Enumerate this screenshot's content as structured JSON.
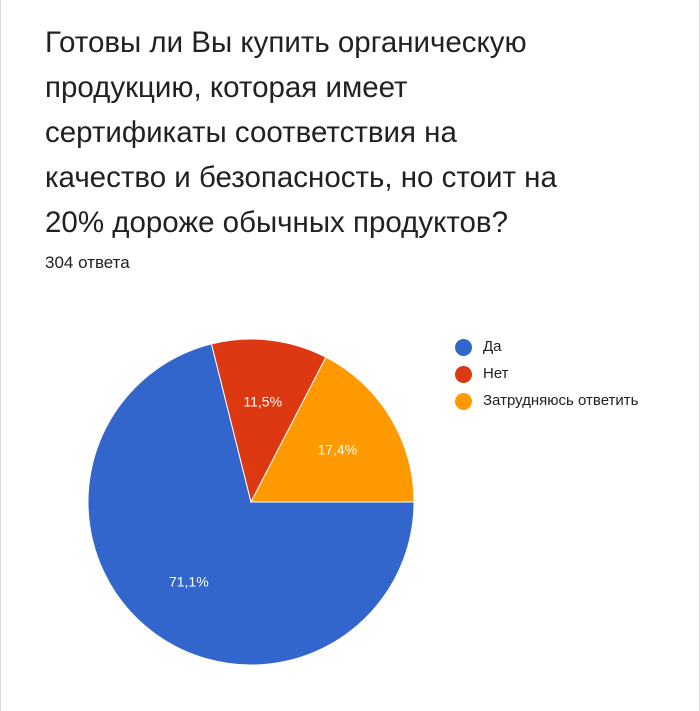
{
  "question": {
    "title": "Готовы ли Вы купить органическую\nпродукцию, которая имеет\nсертификаты соответствия на\nкачество и безопасность, но стоит на\n20% дороже обычных продуктов?",
    "responses": "304 ответа"
  },
  "chart_data": {
    "type": "pie",
    "categories": [
      "Да",
      "Нет",
      "Затрудняюсь ответить"
    ],
    "values": [
      71.1,
      11.5,
      17.4
    ],
    "value_labels": [
      "71,1%",
      "11,5%",
      "17,4%"
    ],
    "colors": [
      "#3366cc",
      "#dc3912",
      "#ff9900"
    ],
    "legend_position": "right",
    "start_direction": "right (3 o'clock), slices drawn counter-clockwise from the largest"
  }
}
